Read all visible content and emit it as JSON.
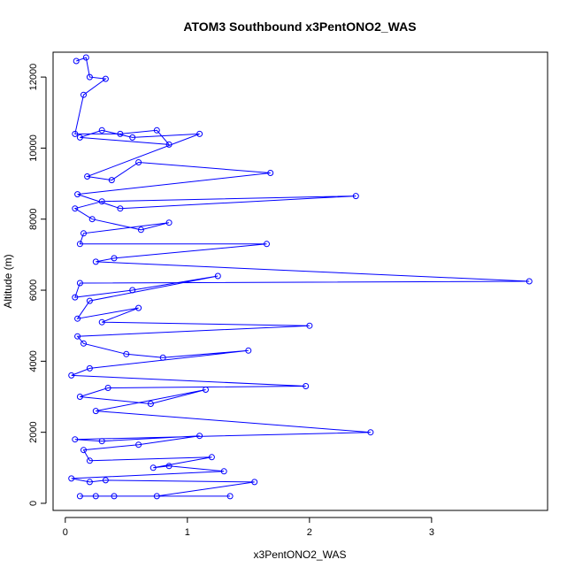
{
  "chart_data": {
    "type": "scatter",
    "title": "ATOM3 Southbound x3PentONO2_WAS",
    "xlabel": "x3PentONO2_WAS",
    "ylabel": "Altitude (m)",
    "xlim": [
      -0.1,
      3.95
    ],
    "ylim": [
      -200,
      12700
    ],
    "xticks": [
      0,
      1,
      2,
      3
    ],
    "yticks": [
      0,
      2000,
      4000,
      6000,
      8000,
      10000,
      12000
    ],
    "grid": false,
    "legend": "none",
    "connect_points": true,
    "marker": "open-circle",
    "color": "#0000ff",
    "series": [
      {
        "x": [
          0.09,
          0.17,
          0.2,
          0.33,
          0.15,
          0.08,
          0.45,
          0.75,
          0.85,
          0.12,
          0.3,
          0.55,
          1.1,
          0.18,
          0.38,
          0.6,
          1.68,
          0.1,
          0.45,
          2.38,
          0.3,
          0.08,
          0.22,
          0.62,
          0.85,
          0.15,
          0.12,
          1.65,
          0.4,
          0.25,
          3.8,
          0.12,
          0.08,
          0.55,
          1.25,
          0.2,
          0.1,
          0.6,
          0.3,
          2.0,
          0.1,
          0.15,
          0.5,
          0.8,
          1.5,
          0.2,
          0.05,
          1.97,
          0.35,
          0.12,
          0.7,
          1.15,
          0.25,
          2.5,
          0.08,
          0.3,
          1.1,
          0.6,
          0.15,
          0.2,
          1.2,
          0.72,
          0.85,
          1.3,
          0.05,
          0.2,
          0.33,
          1.55,
          0.75,
          1.35,
          0.25,
          0.12,
          0.4
        ],
        "y": [
          12450,
          12550,
          12000,
          11950,
          11500,
          10400,
          10400,
          10500,
          10100,
          10300,
          10500,
          10300,
          10400,
          9200,
          9100,
          9600,
          9300,
          8700,
          8300,
          8650,
          8500,
          8300,
          8000,
          7700,
          7900,
          7600,
          7300,
          7300,
          6900,
          6800,
          6250,
          6200,
          5800,
          6000,
          6400,
          5700,
          5200,
          5500,
          5100,
          5000,
          4700,
          4500,
          4200,
          4100,
          4300,
          3800,
          3600,
          3300,
          3250,
          3000,
          2800,
          3200,
          2600,
          2000,
          1800,
          1750,
          1900,
          1650,
          1500,
          1200,
          1300,
          1000,
          1050,
          900,
          700,
          600,
          650,
          600,
          200,
          200,
          200,
          200,
          200
        ]
      }
    ]
  }
}
